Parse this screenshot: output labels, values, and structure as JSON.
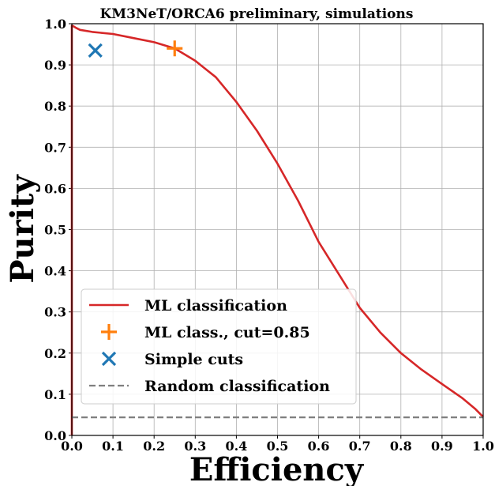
{
  "chart_data": {
    "type": "line",
    "title": "KM3NeT/ORCA6 preliminary, simulations",
    "xlabel": "Efficiency",
    "ylabel": "Purity",
    "xlim": [
      0.0,
      1.0
    ],
    "ylim": [
      0.0,
      1.0
    ],
    "x_ticks": [
      "0.0",
      "0.1",
      "0.2",
      "0.3",
      "0.4",
      "0.5",
      "0.6",
      "0.7",
      "0.8",
      "0.9",
      "1.0"
    ],
    "y_ticks": [
      "0.0",
      "0.1",
      "0.2",
      "0.3",
      "0.4",
      "0.5",
      "0.6",
      "0.7",
      "0.8",
      "0.9",
      "1.0"
    ],
    "grid": true,
    "legend_position": "lower-left",
    "series": [
      {
        "name": "ML classification",
        "kind": "line",
        "color": "#d62728",
        "x": [
          0.0,
          0.0,
          0.002,
          0.01,
          0.02,
          0.05,
          0.1,
          0.15,
          0.2,
          0.25,
          0.3,
          0.35,
          0.4,
          0.45,
          0.5,
          0.55,
          0.6,
          0.65,
          0.7,
          0.75,
          0.8,
          0.85,
          0.9,
          0.95,
          0.98,
          1.0
        ],
        "y": [
          0.0,
          0.995,
          0.995,
          0.99,
          0.985,
          0.98,
          0.975,
          0.965,
          0.955,
          0.94,
          0.91,
          0.87,
          0.81,
          0.74,
          0.66,
          0.57,
          0.47,
          0.39,
          0.31,
          0.25,
          0.2,
          0.16,
          0.125,
          0.09,
          0.065,
          0.045
        ]
      },
      {
        "name": "ML class., cut=0.85",
        "kind": "marker",
        "marker": "plus",
        "color": "#ff7f0e",
        "x": [
          0.25
        ],
        "y": [
          0.94
        ]
      },
      {
        "name": "Simple cuts",
        "kind": "marker",
        "marker": "x",
        "color": "#1f77b4",
        "x": [
          0.057
        ],
        "y": [
          0.935
        ]
      },
      {
        "name": "Random classification",
        "kind": "dashed",
        "color": "#7f7f7f",
        "x": [
          0.0,
          1.0
        ],
        "y": [
          0.044,
          0.044
        ]
      }
    ]
  }
}
